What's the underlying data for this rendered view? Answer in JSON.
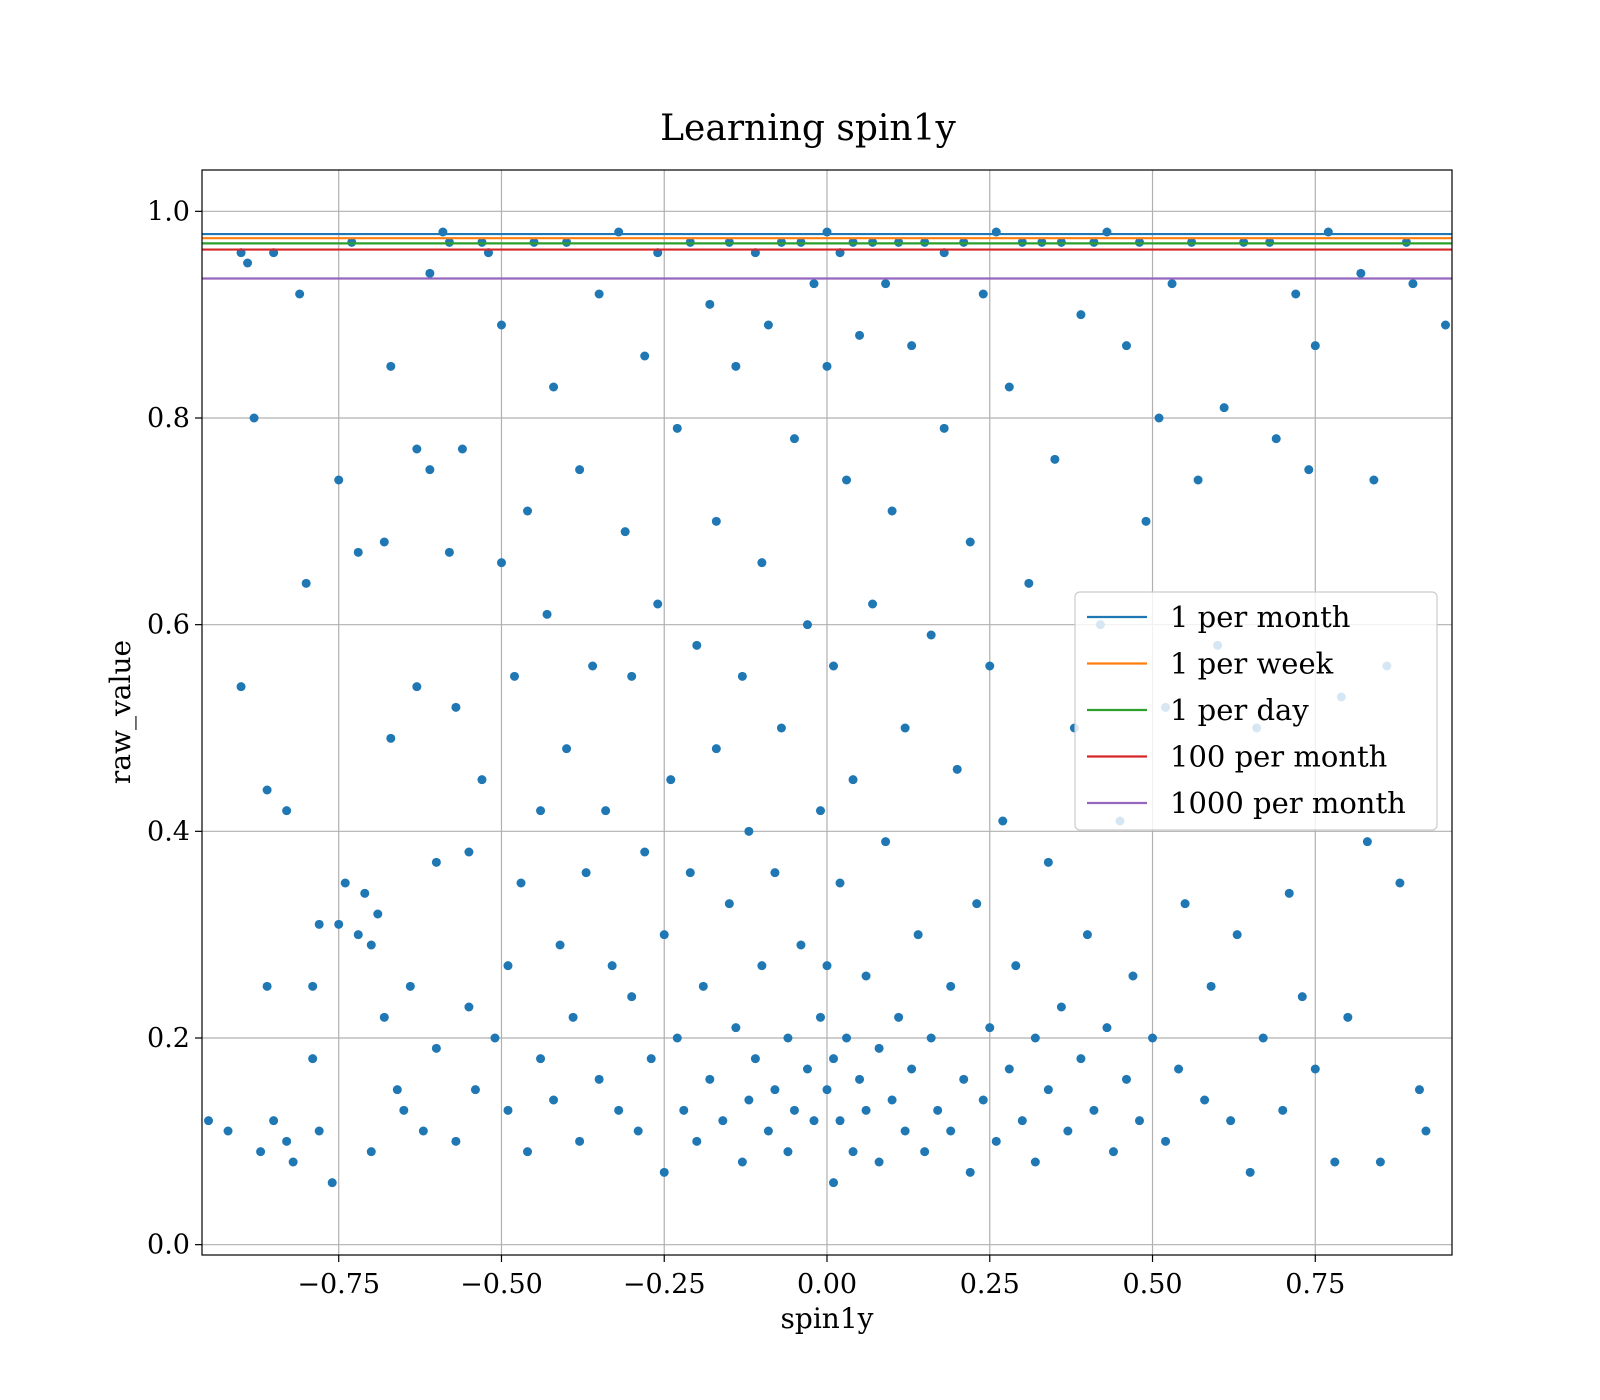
{
  "chart_data": {
    "type": "scatter",
    "title": "Learning spin1y",
    "xlabel": "spin1y",
    "ylabel": "raw_value",
    "xlim": [
      -0.96,
      0.96
    ],
    "ylim": [
      -0.01,
      1.04
    ],
    "xticks": [
      -0.75,
      -0.5,
      -0.25,
      0.0,
      0.25,
      0.5,
      0.75
    ],
    "xtick_labels": [
      "−0.75",
      "−0.50",
      "−0.25",
      "0.00",
      "0.25",
      "0.50",
      "0.75"
    ],
    "yticks": [
      0.0,
      0.2,
      0.4,
      0.6,
      0.8,
      1.0
    ],
    "ytick_labels": [
      "0.0",
      "0.2",
      "0.4",
      "0.6",
      "0.8",
      "1.0"
    ],
    "grid": true,
    "legend_position": "center-right",
    "marker_color": "#1f77b4",
    "reference_lines": [
      {
        "name": "1 per month",
        "y": 0.978,
        "color": "#1f77b4"
      },
      {
        "name": "1 per week",
        "y": 0.974,
        "color": "#ff7f0e"
      },
      {
        "name": "1 per day",
        "y": 0.969,
        "color": "#2ca02c"
      },
      {
        "name": "100 per month",
        "y": 0.963,
        "color": "#d62728"
      },
      {
        "name": "1000 per month",
        "y": 0.935,
        "color": "#9467bd"
      }
    ],
    "points": [
      [
        -0.95,
        0.12
      ],
      [
        -0.92,
        0.11
      ],
      [
        -0.9,
        0.96
      ],
      [
        -0.9,
        0.54
      ],
      [
        -0.89,
        0.95
      ],
      [
        -0.88,
        0.8
      ],
      [
        -0.87,
        0.09
      ],
      [
        -0.86,
        0.44
      ],
      [
        -0.86,
        0.25
      ],
      [
        -0.85,
        0.96
      ],
      [
        -0.85,
        0.12
      ],
      [
        -0.83,
        0.1
      ],
      [
        -0.83,
        0.42
      ],
      [
        -0.82,
        0.08
      ],
      [
        -0.81,
        0.92
      ],
      [
        -0.8,
        0.64
      ],
      [
        -0.79,
        0.25
      ],
      [
        -0.79,
        0.18
      ],
      [
        -0.78,
        0.31
      ],
      [
        -0.78,
        0.11
      ],
      [
        -0.76,
        0.06
      ],
      [
        -0.75,
        0.74
      ],
      [
        -0.75,
        0.31
      ],
      [
        -0.74,
        0.35
      ],
      [
        -0.73,
        0.97
      ],
      [
        -0.72,
        0.67
      ],
      [
        -0.72,
        0.3
      ],
      [
        -0.71,
        0.34
      ],
      [
        -0.7,
        0.29
      ],
      [
        -0.7,
        0.09
      ],
      [
        -0.69,
        0.32
      ],
      [
        -0.68,
        0.22
      ],
      [
        -0.68,
        0.68
      ],
      [
        -0.67,
        0.85
      ],
      [
        -0.67,
        0.49
      ],
      [
        -0.66,
        0.15
      ],
      [
        -0.65,
        0.13
      ],
      [
        -0.64,
        0.25
      ],
      [
        -0.63,
        0.77
      ],
      [
        -0.63,
        0.54
      ],
      [
        -0.62,
        0.11
      ],
      [
        -0.61,
        0.94
      ],
      [
        -0.61,
        0.75
      ],
      [
        -0.6,
        0.37
      ],
      [
        -0.6,
        0.19
      ],
      [
        -0.59,
        0.98
      ],
      [
        -0.58,
        0.97
      ],
      [
        -0.58,
        0.67
      ],
      [
        -0.57,
        0.52
      ],
      [
        -0.57,
        0.1
      ],
      [
        -0.56,
        0.77
      ],
      [
        -0.55,
        0.23
      ],
      [
        -0.55,
        0.38
      ],
      [
        -0.54,
        0.15
      ],
      [
        -0.53,
        0.97
      ],
      [
        -0.53,
        0.45
      ],
      [
        -0.52,
        0.96
      ],
      [
        -0.51,
        0.2
      ],
      [
        -0.5,
        0.66
      ],
      [
        -0.5,
        0.89
      ],
      [
        -0.49,
        0.27
      ],
      [
        -0.49,
        0.13
      ],
      [
        -0.48,
        0.55
      ],
      [
        -0.47,
        0.35
      ],
      [
        -0.46,
        0.09
      ],
      [
        -0.46,
        0.71
      ],
      [
        -0.45,
        0.97
      ],
      [
        -0.44,
        0.18
      ],
      [
        -0.44,
        0.42
      ],
      [
        -0.43,
        0.61
      ],
      [
        -0.42,
        0.83
      ],
      [
        -0.42,
        0.14
      ],
      [
        -0.41,
        0.29
      ],
      [
        -0.4,
        0.97
      ],
      [
        -0.4,
        0.48
      ],
      [
        -0.39,
        0.22
      ],
      [
        -0.38,
        0.75
      ],
      [
        -0.38,
        0.1
      ],
      [
        -0.37,
        0.36
      ],
      [
        -0.36,
        0.56
      ],
      [
        -0.35,
        0.92
      ],
      [
        -0.35,
        0.16
      ],
      [
        -0.34,
        0.42
      ],
      [
        -0.33,
        0.27
      ],
      [
        -0.32,
        0.98
      ],
      [
        -0.32,
        0.13
      ],
      [
        -0.31,
        0.69
      ],
      [
        -0.3,
        0.24
      ],
      [
        -0.3,
        0.55
      ],
      [
        -0.29,
        0.11
      ],
      [
        -0.28,
        0.86
      ],
      [
        -0.28,
        0.38
      ],
      [
        -0.27,
        0.18
      ],
      [
        -0.26,
        0.96
      ],
      [
        -0.26,
        0.62
      ],
      [
        -0.25,
        0.07
      ],
      [
        -0.25,
        0.3
      ],
      [
        -0.24,
        0.45
      ],
      [
        -0.23,
        0.2
      ],
      [
        -0.23,
        0.79
      ],
      [
        -0.22,
        0.13
      ],
      [
        -0.21,
        0.97
      ],
      [
        -0.21,
        0.36
      ],
      [
        -0.2,
        0.58
      ],
      [
        -0.2,
        0.1
      ],
      [
        -0.19,
        0.25
      ],
      [
        -0.18,
        0.91
      ],
      [
        -0.18,
        0.16
      ],
      [
        -0.17,
        0.48
      ],
      [
        -0.17,
        0.7
      ],
      [
        -0.16,
        0.12
      ],
      [
        -0.15,
        0.97
      ],
      [
        -0.15,
        0.33
      ],
      [
        -0.14,
        0.21
      ],
      [
        -0.14,
        0.85
      ],
      [
        -0.13,
        0.08
      ],
      [
        -0.13,
        0.55
      ],
      [
        -0.12,
        0.14
      ],
      [
        -0.12,
        0.4
      ],
      [
        -0.11,
        0.96
      ],
      [
        -0.11,
        0.18
      ],
      [
        -0.1,
        0.27
      ],
      [
        -0.1,
        0.66
      ],
      [
        -0.09,
        0.11
      ],
      [
        -0.09,
        0.89
      ],
      [
        -0.08,
        0.15
      ],
      [
        -0.08,
        0.36
      ],
      [
        -0.07,
        0.97
      ],
      [
        -0.07,
        0.5
      ],
      [
        -0.06,
        0.2
      ],
      [
        -0.06,
        0.09
      ],
      [
        -0.05,
        0.78
      ],
      [
        -0.05,
        0.13
      ],
      [
        -0.04,
        0.97
      ],
      [
        -0.04,
        0.29
      ],
      [
        -0.03,
        0.17
      ],
      [
        -0.03,
        0.6
      ],
      [
        -0.02,
        0.12
      ],
      [
        -0.02,
        0.93
      ],
      [
        -0.01,
        0.22
      ],
      [
        -0.01,
        0.42
      ],
      [
        0.0,
        0.98
      ],
      [
        0.0,
        0.15
      ],
      [
        0.0,
        0.85
      ],
      [
        0.0,
        0.27
      ],
      [
        0.01,
        0.06
      ],
      [
        0.01,
        0.56
      ],
      [
        0.01,
        0.18
      ],
      [
        0.02,
        0.96
      ],
      [
        0.02,
        0.35
      ],
      [
        0.02,
        0.12
      ],
      [
        0.03,
        0.74
      ],
      [
        0.03,
        0.2
      ],
      [
        0.04,
        0.97
      ],
      [
        0.04,
        0.09
      ],
      [
        0.04,
        0.45
      ],
      [
        0.05,
        0.16
      ],
      [
        0.05,
        0.88
      ],
      [
        0.06,
        0.26
      ],
      [
        0.06,
        0.13
      ],
      [
        0.07,
        0.97
      ],
      [
        0.07,
        0.62
      ],
      [
        0.08,
        0.19
      ],
      [
        0.08,
        0.08
      ],
      [
        0.09,
        0.39
      ],
      [
        0.09,
        0.93
      ],
      [
        0.1,
        0.14
      ],
      [
        0.1,
        0.71
      ],
      [
        0.11,
        0.22
      ],
      [
        0.11,
        0.97
      ],
      [
        0.12,
        0.11
      ],
      [
        0.12,
        0.5
      ],
      [
        0.13,
        0.17
      ],
      [
        0.13,
        0.87
      ],
      [
        0.14,
        0.3
      ],
      [
        0.15,
        0.97
      ],
      [
        0.15,
        0.09
      ],
      [
        0.16,
        0.59
      ],
      [
        0.16,
        0.2
      ],
      [
        0.17,
        0.13
      ],
      [
        0.18,
        0.96
      ],
      [
        0.18,
        0.79
      ],
      [
        0.19,
        0.25
      ],
      [
        0.19,
        0.11
      ],
      [
        0.2,
        0.46
      ],
      [
        0.21,
        0.97
      ],
      [
        0.21,
        0.16
      ],
      [
        0.22,
        0.68
      ],
      [
        0.22,
        0.07
      ],
      [
        0.23,
        0.33
      ],
      [
        0.24,
        0.92
      ],
      [
        0.24,
        0.14
      ],
      [
        0.25,
        0.56
      ],
      [
        0.25,
        0.21
      ],
      [
        0.26,
        0.98
      ],
      [
        0.26,
        0.1
      ],
      [
        0.27,
        0.41
      ],
      [
        0.28,
        0.83
      ],
      [
        0.28,
        0.17
      ],
      [
        0.29,
        0.27
      ],
      [
        0.3,
        0.97
      ],
      [
        0.3,
        0.12
      ],
      [
        0.31,
        0.64
      ],
      [
        0.32,
        0.2
      ],
      [
        0.32,
        0.08
      ],
      [
        0.33,
        0.97
      ],
      [
        0.34,
        0.37
      ],
      [
        0.34,
        0.15
      ],
      [
        0.35,
        0.76
      ],
      [
        0.36,
        0.23
      ],
      [
        0.36,
        0.97
      ],
      [
        0.37,
        0.11
      ],
      [
        0.38,
        0.5
      ],
      [
        0.39,
        0.18
      ],
      [
        0.39,
        0.9
      ],
      [
        0.4,
        0.3
      ],
      [
        0.41,
        0.97
      ],
      [
        0.41,
        0.13
      ],
      [
        0.42,
        0.6
      ],
      [
        0.43,
        0.21
      ],
      [
        0.43,
        0.98
      ],
      [
        0.44,
        0.09
      ],
      [
        0.45,
        0.41
      ],
      [
        0.46,
        0.16
      ],
      [
        0.46,
        0.87
      ],
      [
        0.47,
        0.26
      ],
      [
        0.48,
        0.97
      ],
      [
        0.48,
        0.12
      ],
      [
        0.49,
        0.7
      ],
      [
        0.5,
        0.2
      ],
      [
        0.51,
        0.8
      ],
      [
        0.52,
        0.1
      ],
      [
        0.52,
        0.52
      ],
      [
        0.53,
        0.93
      ],
      [
        0.54,
        0.17
      ],
      [
        0.55,
        0.33
      ],
      [
        0.56,
        0.97
      ],
      [
        0.57,
        0.74
      ],
      [
        0.58,
        0.14
      ],
      [
        0.59,
        0.25
      ],
      [
        0.6,
        0.58
      ],
      [
        0.61,
        0.81
      ],
      [
        0.62,
        0.12
      ],
      [
        0.63,
        0.3
      ],
      [
        0.64,
        0.97
      ],
      [
        0.65,
        0.07
      ],
      [
        0.66,
        0.5
      ],
      [
        0.67,
        0.2
      ],
      [
        0.68,
        0.97
      ],
      [
        0.69,
        0.78
      ],
      [
        0.7,
        0.13
      ],
      [
        0.71,
        0.34
      ],
      [
        0.72,
        0.92
      ],
      [
        0.73,
        0.24
      ],
      [
        0.74,
        0.75
      ],
      [
        0.75,
        0.17
      ],
      [
        0.75,
        0.87
      ],
      [
        0.77,
        0.98
      ],
      [
        0.78,
        0.08
      ],
      [
        0.79,
        0.53
      ],
      [
        0.8,
        0.22
      ],
      [
        0.82,
        0.94
      ],
      [
        0.83,
        0.39
      ],
      [
        0.84,
        0.74
      ],
      [
        0.85,
        0.08
      ],
      [
        0.86,
        0.56
      ],
      [
        0.88,
        0.35
      ],
      [
        0.89,
        0.97
      ],
      [
        0.9,
        0.93
      ],
      [
        0.91,
        0.15
      ],
      [
        0.92,
        0.11
      ],
      [
        0.95,
        0.89
      ]
    ]
  }
}
